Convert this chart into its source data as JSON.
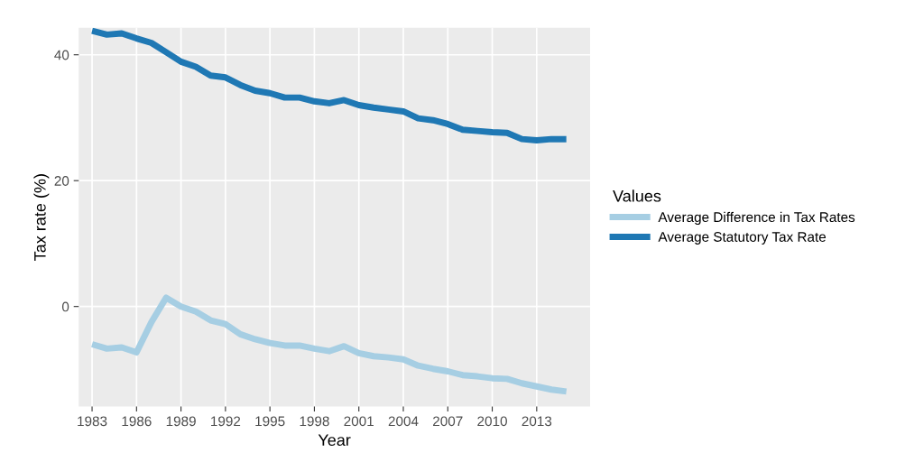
{
  "chart_data": {
    "type": "line",
    "xlabel": "Year",
    "ylabel": "Tax rate (%)",
    "legend_title": "Values",
    "legend": "right",
    "grid": true,
    "x": [
      1983,
      1984,
      1985,
      1986,
      1987,
      1988,
      1989,
      1990,
      1991,
      1992,
      1993,
      1994,
      1995,
      1996,
      1997,
      1998,
      1999,
      2000,
      2001,
      2002,
      2003,
      2004,
      2005,
      2006,
      2007,
      2008,
      2009,
      2010,
      2011,
      2012,
      2013,
      2014,
      2015
    ],
    "series": [
      {
        "name": "Average Difference in Tax Rates",
        "color": "#a6cee3",
        "values": [
          -6.0,
          -6.7,
          -6.5,
          -7.3,
          -2.5,
          1.4,
          0.0,
          -0.8,
          -2.2,
          -2.8,
          -4.4,
          -5.2,
          -5.8,
          -6.2,
          -6.2,
          -6.7,
          -7.1,
          -6.3,
          -7.4,
          -7.9,
          -8.1,
          -8.4,
          -9.4,
          -9.9,
          -10.3,
          -10.9,
          -11.1,
          -11.4,
          -11.5,
          -12.2,
          -12.7,
          -13.2,
          -13.5
        ]
      },
      {
        "name": "Average Statutory Tax Rate",
        "color": "#1f78b4",
        "values": [
          43.8,
          43.2,
          43.4,
          42.6,
          41.9,
          40.4,
          38.9,
          38.1,
          36.7,
          36.4,
          35.2,
          34.3,
          33.9,
          33.2,
          33.2,
          32.6,
          32.3,
          32.8,
          32.0,
          31.6,
          31.3,
          31.0,
          29.9,
          29.6,
          29.0,
          28.1,
          27.9,
          27.7,
          27.6,
          26.6,
          26.4,
          26.6,
          26.6
        ]
      }
    ],
    "xlim": [
      1982.1,
      2016.6
    ],
    "xticks": [
      1983,
      1986,
      1989,
      1992,
      1995,
      1998,
      2001,
      2004,
      2007,
      2010,
      2013
    ],
    "ylim": [
      -15.9,
      44.3
    ],
    "yticks": [
      0,
      20,
      40
    ],
    "line_style": "solid"
  }
}
